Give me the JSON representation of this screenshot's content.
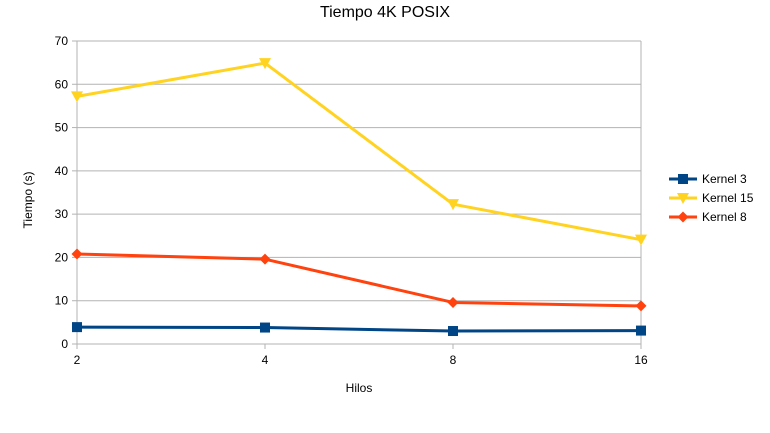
{
  "chart_data": {
    "type": "line",
    "title": "Tiempo 4K POSIX",
    "xlabel": "Hilos",
    "ylabel": "Tiempo (s)",
    "categories": [
      "2",
      "4",
      "8",
      "16"
    ],
    "ylim": [
      0,
      70
    ],
    "yticks": [
      0,
      10,
      20,
      30,
      40,
      50,
      60,
      70
    ],
    "grid": true,
    "legend_position": "right",
    "series": [
      {
        "name": "Kernel 3",
        "values": [
          3.9,
          3.8,
          3.0,
          3.1
        ],
        "color": "#004586",
        "marker": "square"
      },
      {
        "name": "Kernel 15",
        "values": [
          57.2,
          64.9,
          32.3,
          24.1
        ],
        "color": "#ffd320",
        "marker": "triangle-down"
      },
      {
        "name": "Kernel 8",
        "values": [
          20.8,
          19.6,
          9.6,
          8.8
        ],
        "color": "#ff420e",
        "marker": "diamond"
      }
    ]
  }
}
